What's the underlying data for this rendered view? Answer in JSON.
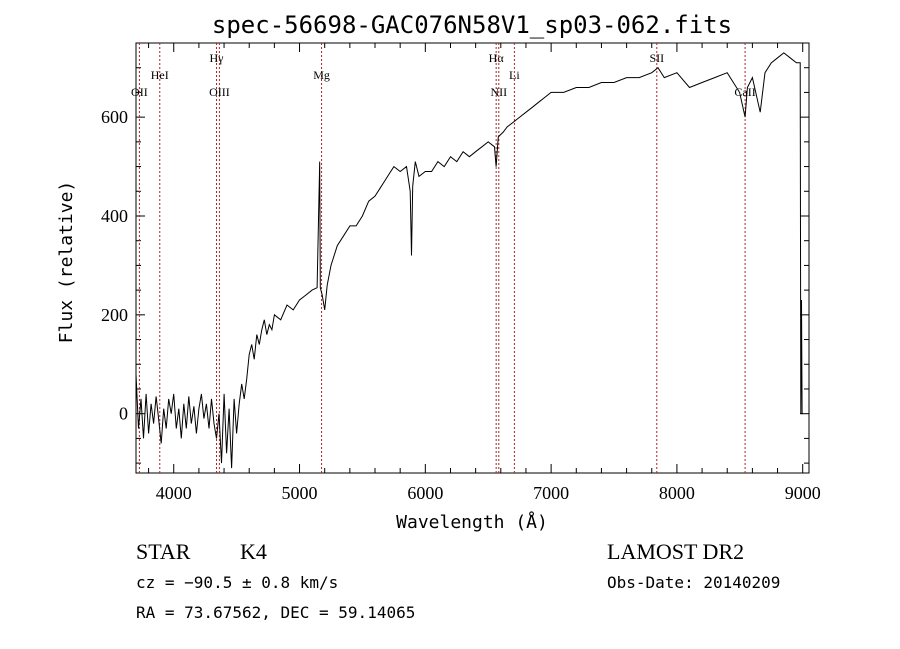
{
  "chart_data": {
    "type": "line",
    "title": "spec-56698-GAC076N58V1_sp03-062.fits",
    "xlabel": "Wavelength (Å)",
    "ylabel": "Flux (relative)",
    "xlim": [
      3700,
      9050
    ],
    "ylim": [
      -120,
      750
    ],
    "xticks": [
      "4000",
      "5000",
      "6000",
      "7000",
      "8000",
      "9000"
    ],
    "yticks": [
      "0",
      "200",
      "400",
      "600"
    ],
    "grid": false,
    "series": [
      {
        "points": [
          [
            3700,
            80
          ],
          [
            3720,
            -30
          ],
          [
            3740,
            30
          ],
          [
            3760,
            -50
          ],
          [
            3780,
            40
          ],
          [
            3800,
            -40
          ],
          [
            3820,
            20
          ],
          [
            3840,
            -20
          ],
          [
            3860,
            35
          ],
          [
            3880,
            -10
          ],
          [
            3900,
            -60
          ],
          [
            3920,
            10
          ],
          [
            3940,
            -30
          ],
          [
            3960,
            30
          ],
          [
            3980,
            0
          ],
          [
            4000,
            40
          ],
          [
            4020,
            -30
          ],
          [
            4040,
            10
          ],
          [
            4060,
            -50
          ],
          [
            4080,
            20
          ],
          [
            4100,
            -30
          ],
          [
            4120,
            35
          ],
          [
            4140,
            -20
          ],
          [
            4160,
            15
          ],
          [
            4180,
            -40
          ],
          [
            4200,
            10
          ],
          [
            4220,
            40
          ],
          [
            4240,
            -10
          ],
          [
            4260,
            20
          ],
          [
            4280,
            -30
          ],
          [
            4300,
            30
          ],
          [
            4320,
            -20
          ],
          [
            4340,
            -50
          ],
          [
            4360,
            0
          ],
          [
            4380,
            -100
          ],
          [
            4400,
            40
          ],
          [
            4420,
            -80
          ],
          [
            4440,
            10
          ],
          [
            4460,
            -110
          ],
          [
            4480,
            30
          ],
          [
            4500,
            -40
          ],
          [
            4520,
            20
          ],
          [
            4540,
            60
          ],
          [
            4560,
            30
          ],
          [
            4580,
            70
          ],
          [
            4600,
            120
          ],
          [
            4620,
            140
          ],
          [
            4640,
            110
          ],
          [
            4660,
            160
          ],
          [
            4680,
            140
          ],
          [
            4700,
            170
          ],
          [
            4720,
            190
          ],
          [
            4740,
            160
          ],
          [
            4760,
            180
          ],
          [
            4780,
            170
          ],
          [
            4800,
            200
          ],
          [
            4850,
            190
          ],
          [
            4900,
            220
          ],
          [
            4950,
            210
          ],
          [
            5000,
            230
          ],
          [
            5050,
            240
          ],
          [
            5100,
            250
          ],
          [
            5140,
            255
          ],
          [
            5160,
            510
          ],
          [
            5165,
            255
          ],
          [
            5180,
            240
          ],
          [
            5200,
            210
          ],
          [
            5220,
            260
          ],
          [
            5250,
            300
          ],
          [
            5300,
            340
          ],
          [
            5350,
            360
          ],
          [
            5400,
            380
          ],
          [
            5450,
            380
          ],
          [
            5500,
            400
          ],
          [
            5550,
            430
          ],
          [
            5600,
            440
          ],
          [
            5650,
            460
          ],
          [
            5700,
            480
          ],
          [
            5750,
            500
          ],
          [
            5800,
            490
          ],
          [
            5850,
            500
          ],
          [
            5880,
            450
          ],
          [
            5890,
            320
          ],
          [
            5900,
            460
          ],
          [
            5920,
            510
          ],
          [
            5950,
            480
          ],
          [
            6000,
            490
          ],
          [
            6050,
            490
          ],
          [
            6100,
            510
          ],
          [
            6150,
            500
          ],
          [
            6200,
            520
          ],
          [
            6250,
            510
          ],
          [
            6300,
            530
          ],
          [
            6350,
            520
          ],
          [
            6400,
            530
          ],
          [
            6450,
            540
          ],
          [
            6500,
            550
          ],
          [
            6550,
            540
          ],
          [
            6563,
            500
          ],
          [
            6580,
            560
          ],
          [
            6620,
            570
          ],
          [
            6650,
            580
          ],
          [
            6700,
            590
          ],
          [
            6750,
            600
          ],
          [
            6800,
            610
          ],
          [
            6850,
            620
          ],
          [
            6900,
            630
          ],
          [
            6950,
            640
          ],
          [
            7000,
            650
          ],
          [
            7100,
            650
          ],
          [
            7200,
            660
          ],
          [
            7300,
            660
          ],
          [
            7400,
            670
          ],
          [
            7500,
            670
          ],
          [
            7600,
            680
          ],
          [
            7700,
            680
          ],
          [
            7800,
            690
          ],
          [
            7850,
            700
          ],
          [
            7900,
            680
          ],
          [
            8000,
            690
          ],
          [
            8100,
            660
          ],
          [
            8200,
            670
          ],
          [
            8300,
            680
          ],
          [
            8400,
            690
          ],
          [
            8498,
            650
          ],
          [
            8542,
            600
          ],
          [
            8560,
            660
          ],
          [
            8600,
            680
          ],
          [
            8662,
            610
          ],
          [
            8700,
            690
          ],
          [
            8750,
            710
          ],
          [
            8800,
            720
          ],
          [
            8850,
            730
          ],
          [
            8900,
            720
          ],
          [
            8950,
            710
          ],
          [
            8980,
            710
          ],
          [
            8985,
            0
          ],
          [
            8990,
            230
          ],
          [
            8995,
            0
          ],
          [
            9000,
            0
          ]
        ]
      }
    ],
    "spectral_lines": [
      {
        "label": "OII",
        "wavelength": 3727,
        "label_row": 2
      },
      {
        "label": "HeI",
        "wavelength": 3889,
        "label_row": 1
      },
      {
        "label": "Hγ",
        "wavelength": 4340,
        "label_row": 0
      },
      {
        "label": "OIII",
        "wavelength": 4363,
        "label_row": 2
      },
      {
        "label": "Mg",
        "wavelength": 5175,
        "label_row": 1
      },
      {
        "label": "Hα",
        "wavelength": 6563,
        "label_row": 0
      },
      {
        "label": "NII",
        "wavelength": 6584,
        "label_row": 2
      },
      {
        "label": "Li",
        "wavelength": 6708,
        "label_row": 1
      },
      {
        "label": "SII",
        "wavelength": 7840,
        "label_row": 0
      },
      {
        "label": "CaII",
        "wavelength": 8542,
        "label_row": 2
      }
    ],
    "line_color": "#000000",
    "marker_color": "#b22222"
  },
  "info": {
    "object_class": "STAR",
    "subclass": "K4",
    "survey": "LAMOST DR2",
    "cz": "cz = −90.5 ± 0.8 km/s",
    "obs_date": "Obs-Date: 20140209",
    "coords": "RA =  73.67562, DEC =  59.14065"
  }
}
